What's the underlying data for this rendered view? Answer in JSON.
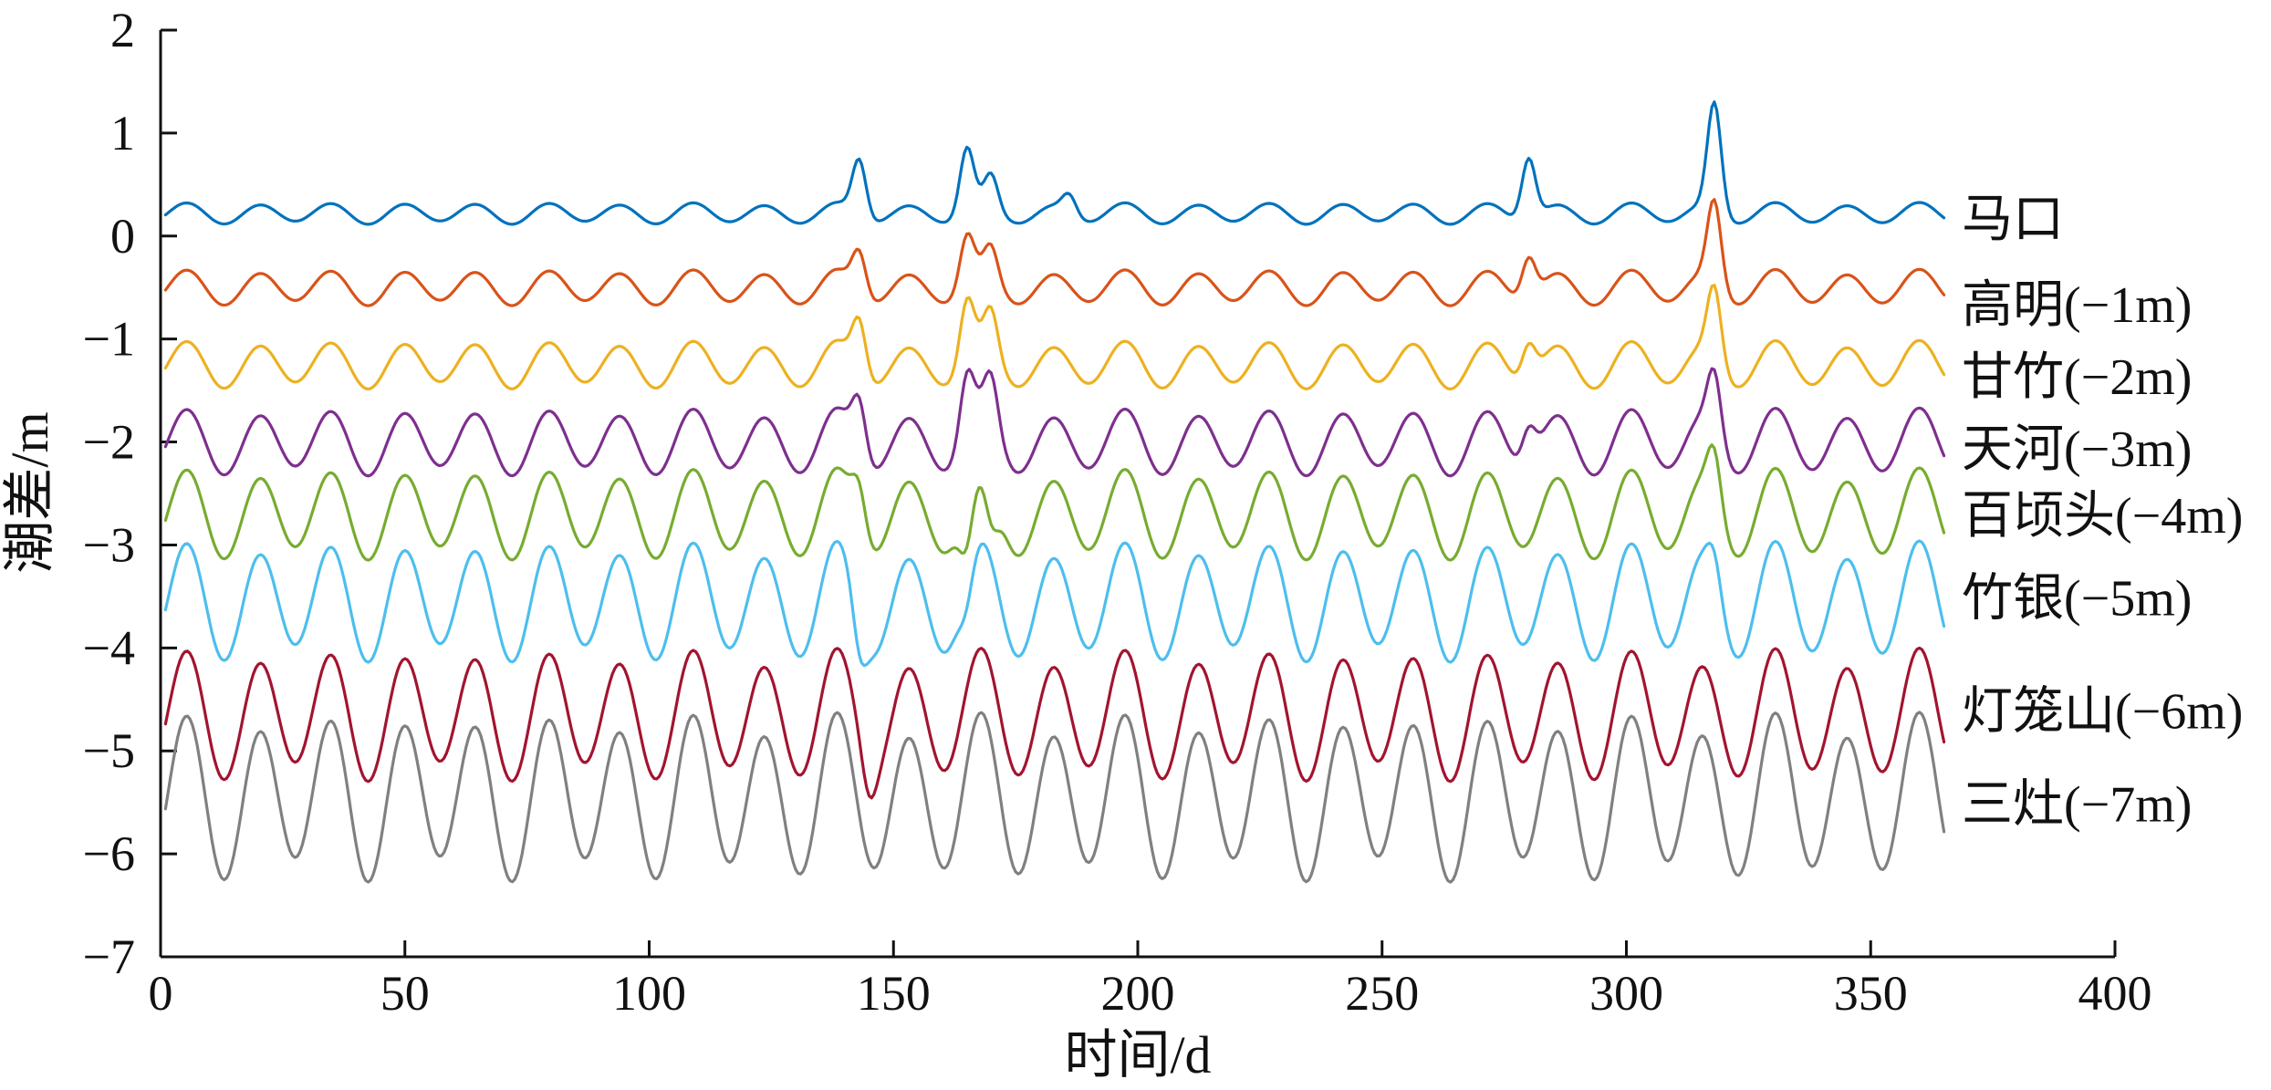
{
  "chart_data": {
    "type": "line",
    "title": "",
    "xlabel": "时间/d",
    "ylabel": "潮差/m",
    "xlim": [
      0,
      400
    ],
    "ylim": [
      -7,
      2
    ],
    "xticks": [
      0,
      50,
      100,
      150,
      200,
      250,
      300,
      350,
      400
    ],
    "yticks": [
      2,
      1,
      0,
      -1,
      -2,
      -3,
      -4,
      -5,
      -6,
      -7
    ],
    "ytick_labels": [
      "2",
      "1",
      "0",
      "−1",
      "−2",
      "−3",
      "−4",
      "−5",
      "−6",
      "−7"
    ],
    "grid": false,
    "legend": "none; each series labeled at right end",
    "x_days": [
      1,
      365
    ],
    "series": [
      {
        "name": "马口",
        "offset": 0,
        "color": "#0072BD",
        "base": 0.22,
        "amp": 0.09,
        "end_value": 0.13,
        "spikes": [
          [
            143,
            0.55
          ],
          [
            165,
            0.6
          ],
          [
            170,
            0.32
          ],
          [
            186,
            0.18
          ],
          [
            280,
            0.6
          ],
          [
            318,
            1.05
          ]
        ]
      },
      {
        "name": "高明(−1m)",
        "offset": -1,
        "color": "#D95319",
        "base": -0.5,
        "amp": 0.15,
        "end_value": -0.7,
        "spikes": [
          [
            143,
            0.4
          ],
          [
            165,
            0.45
          ],
          [
            170,
            0.3
          ],
          [
            280,
            0.4
          ],
          [
            318,
            0.8
          ]
        ]
      },
      {
        "name": "甘竹(−2m)",
        "offset": -2,
        "color": "#EDB120",
        "base": -1.25,
        "amp": 0.2,
        "end_value": -1.4,
        "spikes": [
          [
            143,
            0.5
          ],
          [
            165,
            0.55
          ],
          [
            170,
            0.4
          ],
          [
            280,
            0.35
          ],
          [
            318,
            0.7
          ]
        ]
      },
      {
        "name": "天河(−3m)",
        "offset": -3,
        "color": "#7E2F8E",
        "base": -2.0,
        "amp": 0.28,
        "end_value": -2.1,
        "spikes": [
          [
            143,
            0.5
          ],
          [
            165,
            0.55
          ],
          [
            170,
            0.45
          ],
          [
            280,
            0.35
          ],
          [
            318,
            0.6
          ]
        ]
      },
      {
        "name": "百顷头(−4m)",
        "offset": -4,
        "color": "#77AC30",
        "base": -2.7,
        "amp": 0.38,
        "end_value": -2.75,
        "spikes": [
          [
            143,
            0.4
          ],
          [
            165,
            -0.5
          ],
          [
            170,
            -0.4
          ],
          [
            318,
            0.5
          ]
        ]
      },
      {
        "name": "竹银(−5m)",
        "offset": -5,
        "color": "#4DBEEE",
        "base": -3.55,
        "amp": 0.5,
        "end_value": -3.55,
        "spikes": [
          [
            143,
            -0.4
          ],
          [
            165,
            -0.3
          ],
          [
            318,
            0.3
          ]
        ]
      },
      {
        "name": "灯笼山(−6m)",
        "offset": -6,
        "color": "#A2142F",
        "base": -4.65,
        "amp": 0.55,
        "end_value": -4.65,
        "spikes": [
          [
            145,
            -0.3
          ]
        ]
      },
      {
        "name": "三灶(−7m)",
        "offset": -7,
        "color": "#808080",
        "base": -5.45,
        "amp": 0.7,
        "end_value": -5.55,
        "spikes": []
      }
    ]
  }
}
